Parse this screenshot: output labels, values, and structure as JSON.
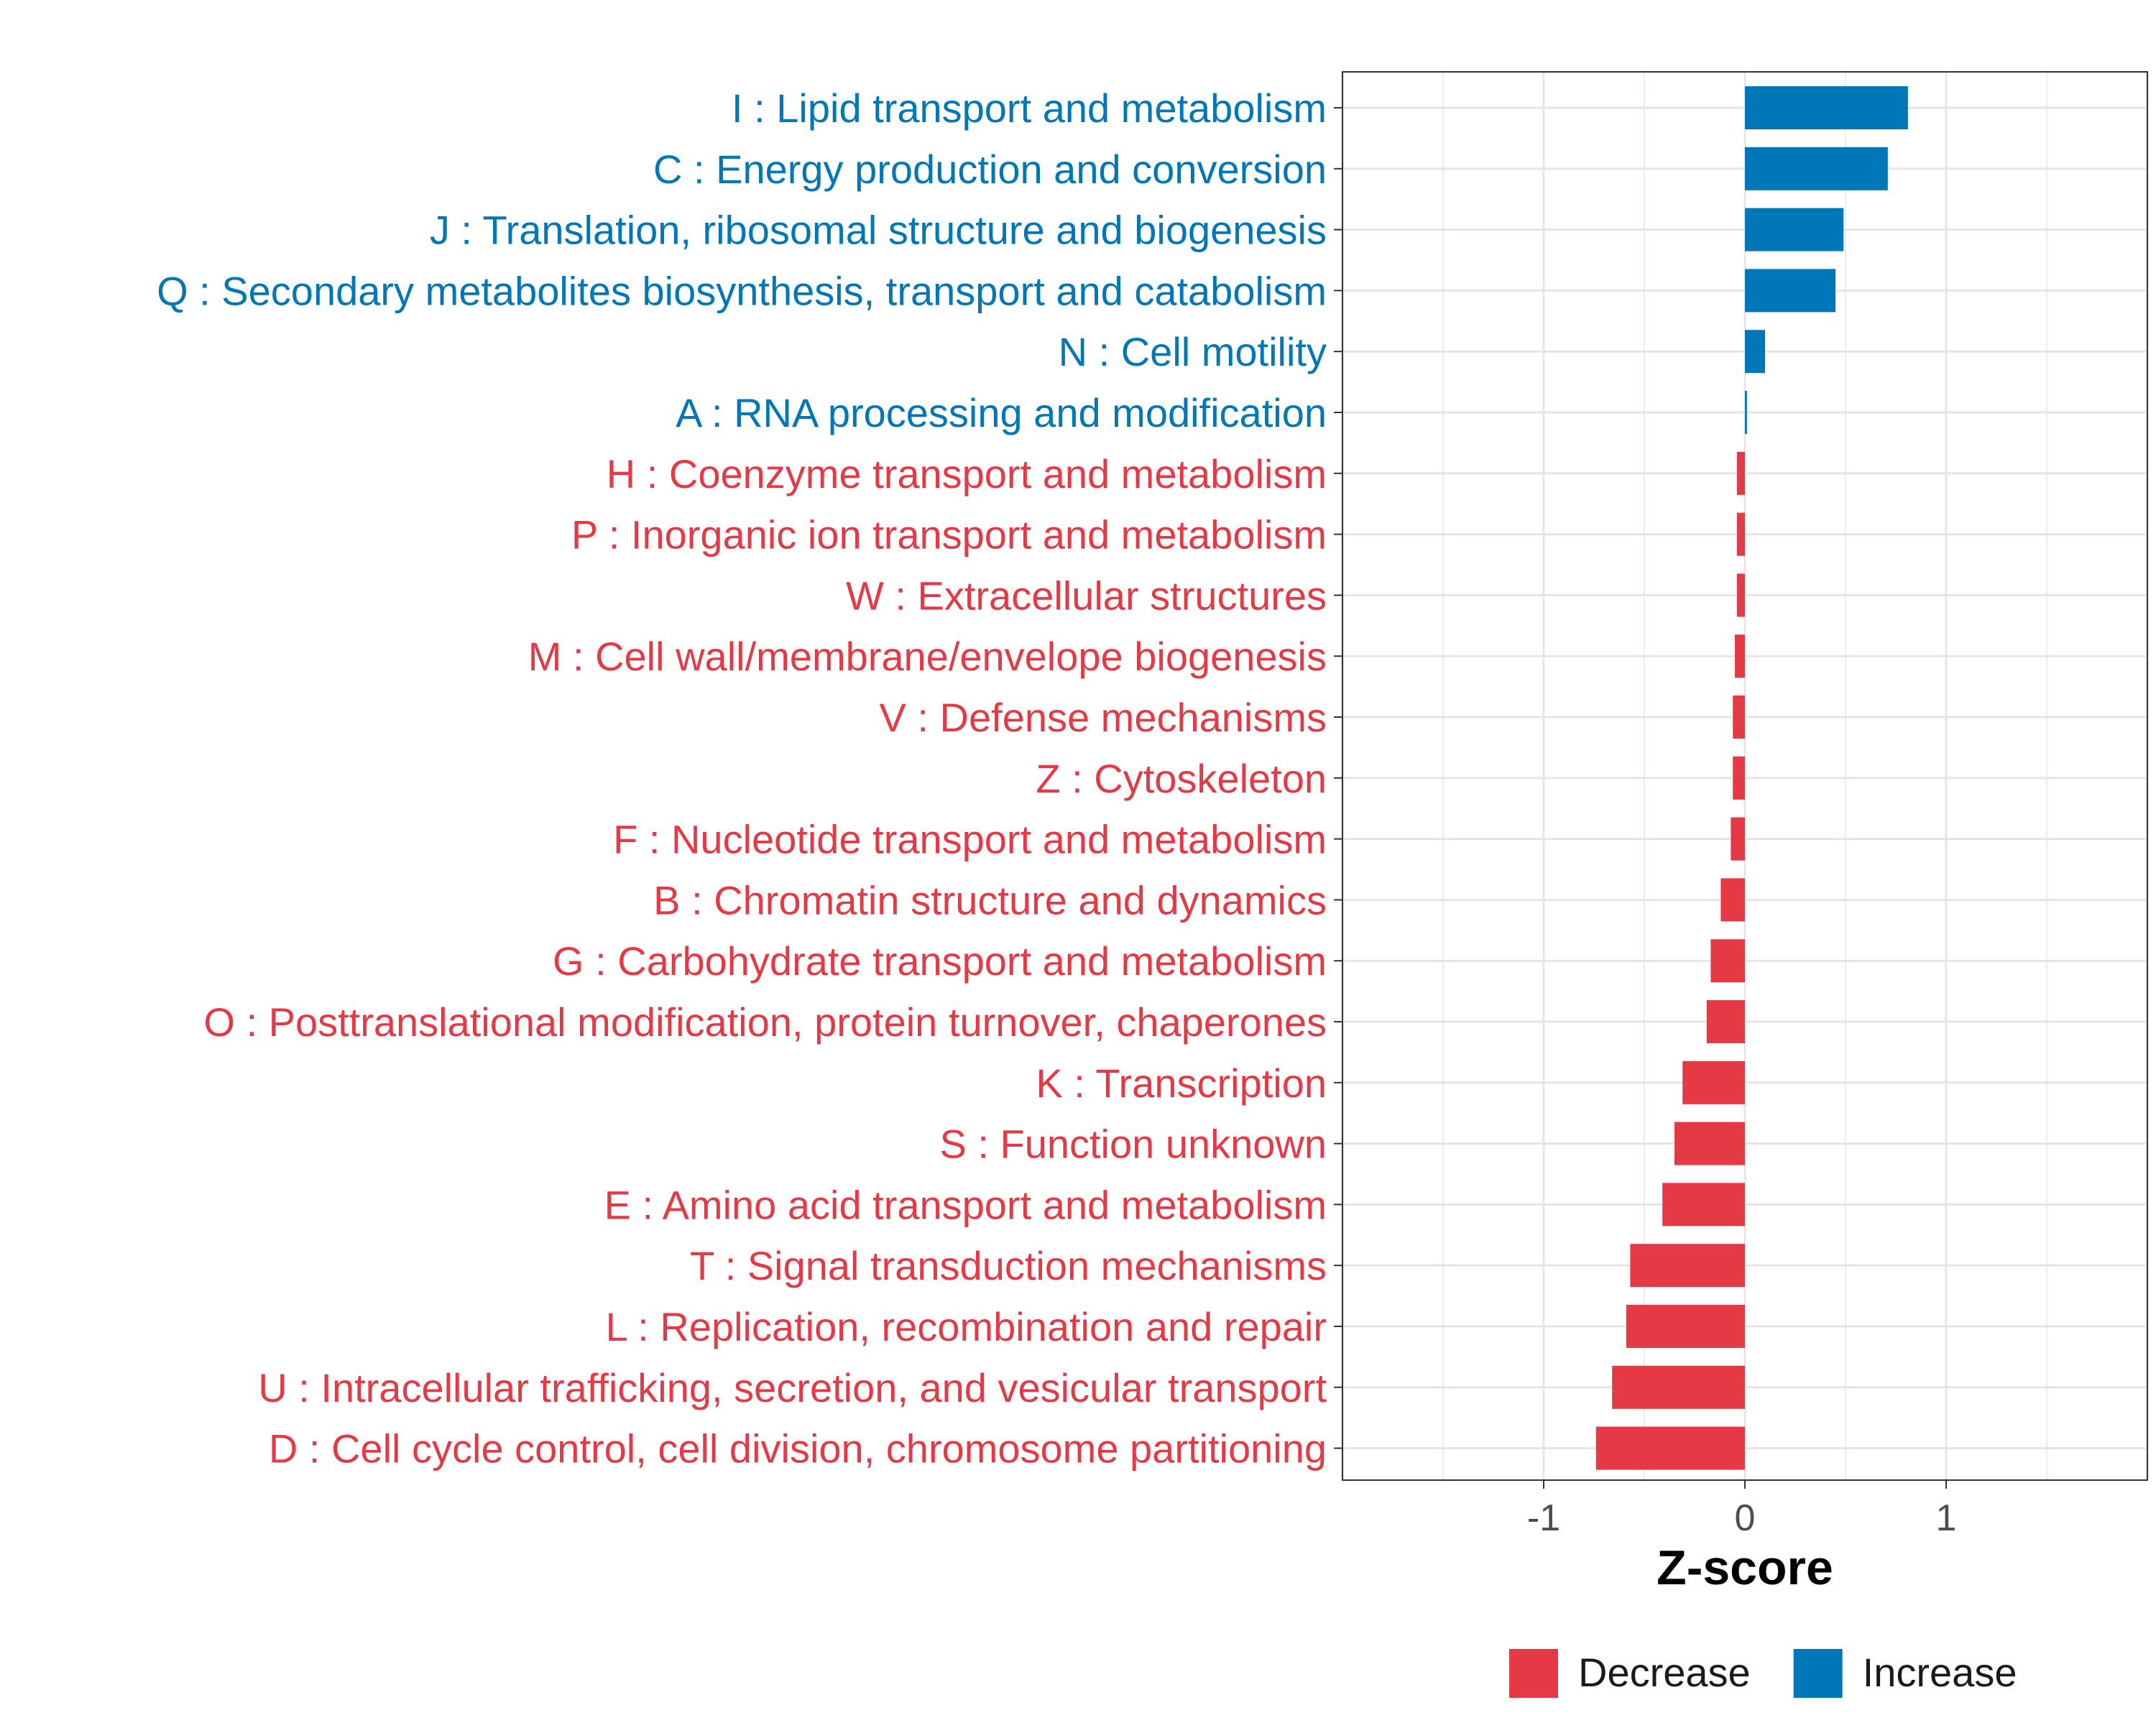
{
  "chart_data": {
    "type": "bar",
    "orientation": "horizontal",
    "title": "",
    "xlabel": "Z-score",
    "ylabel": "",
    "xlim": [
      -2,
      2
    ],
    "xticks": [
      {
        "value": -1,
        "label": "-1"
      },
      {
        "value": 0,
        "label": "0"
      },
      {
        "value": 1,
        "label": "1"
      }
    ],
    "grid": true,
    "legend_position": "bottom",
    "colors": {
      "Decrease": "#E63946",
      "Increase": "#0077B6"
    },
    "legend": [
      {
        "name": "Decrease",
        "color": "#E63946"
      },
      {
        "name": "Increase",
        "color": "#0077B6"
      }
    ],
    "categories": [
      "I : Lipid transport and metabolism",
      "C : Energy production and conversion",
      "J : Translation, ribosomal structure and biogenesis",
      "Q : Secondary metabolites biosynthesis, transport and catabolism",
      "N : Cell motility",
      "A : RNA processing and modification",
      "H : Coenzyme transport and metabolism",
      "P : Inorganic ion transport and metabolism",
      "W : Extracellular structures",
      "M : Cell wall/membrane/envelope biogenesis",
      "V : Defense mechanisms",
      "Z : Cytoskeleton",
      "F : Nucleotide transport and metabolism",
      "B : Chromatin structure and dynamics",
      "G : Carbohydrate transport and metabolism",
      "O : Posttranslational modification, protein turnover, chaperones",
      "K : Transcription",
      "S : Function unknown",
      "E : Amino acid transport and metabolism",
      "T : Signal transduction mechanisms",
      "L : Replication, recombination and repair",
      "U : Intracellular trafficking, secretion, and vesicular transport",
      "D : Cell cycle control, cell division, chromosome partitioning"
    ],
    "values": [
      0.81,
      0.71,
      0.49,
      0.45,
      0.1,
      0.01,
      -0.04,
      -0.04,
      -0.04,
      -0.05,
      -0.06,
      -0.06,
      -0.07,
      -0.12,
      -0.17,
      -0.19,
      -0.31,
      -0.35,
      -0.41,
      -0.57,
      -0.59,
      -0.66,
      -0.74
    ],
    "groups": [
      "Increase",
      "Increase",
      "Increase",
      "Increase",
      "Increase",
      "Increase",
      "Decrease",
      "Decrease",
      "Decrease",
      "Decrease",
      "Decrease",
      "Decrease",
      "Decrease",
      "Decrease",
      "Decrease",
      "Decrease",
      "Decrease",
      "Decrease",
      "Decrease",
      "Decrease",
      "Decrease",
      "Decrease",
      "Decrease"
    ]
  }
}
